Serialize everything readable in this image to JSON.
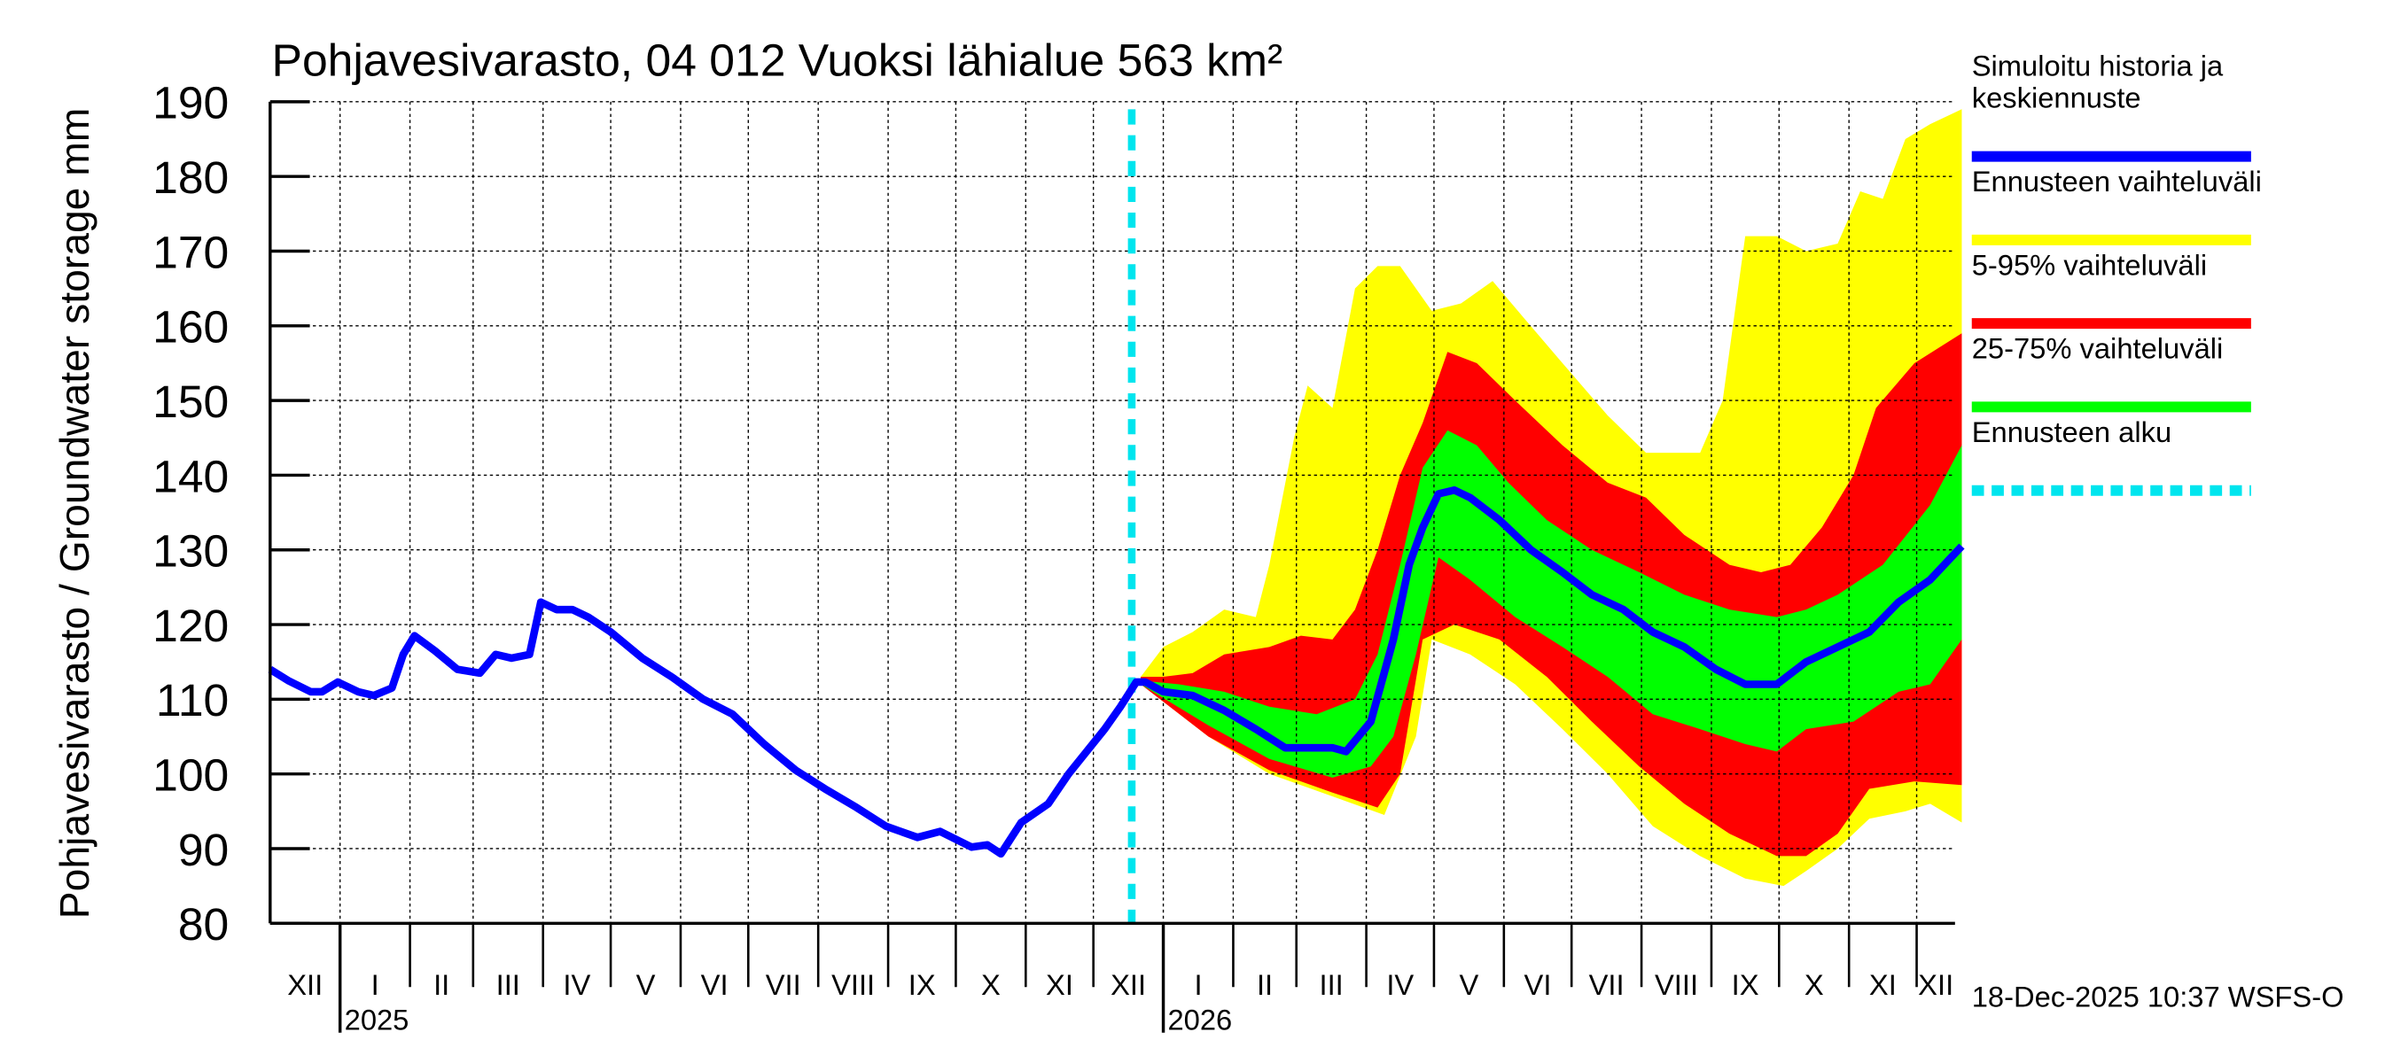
{
  "chart_data": {
    "type": "area",
    "title": "Pohjavesivarasto, 04 012 Vuoksi lähialue 563 km²",
    "ylabel": "Pohjavesivarasto / Groundwater storage   mm",
    "xlabel": "",
    "x_units": "days since 2024-12-01",
    "xlim": [
      0,
      747
    ],
    "ylim": [
      80,
      190
    ],
    "yticks": [
      80,
      90,
      100,
      110,
      120,
      130,
      140,
      150,
      160,
      170,
      180,
      190
    ],
    "grid": true,
    "months": [
      {
        "label": "XII",
        "start": 0
      },
      {
        "label": "I",
        "start": 31
      },
      {
        "label": "II",
        "start": 62
      },
      {
        "label": "III",
        "start": 90
      },
      {
        "label": "IV",
        "start": 121
      },
      {
        "label": "V",
        "start": 151
      },
      {
        "label": "VI",
        "start": 182
      },
      {
        "label": "VII",
        "start": 212
      },
      {
        "label": "VIII",
        "start": 243
      },
      {
        "label": "IX",
        "start": 274
      },
      {
        "label": "X",
        "start": 304
      },
      {
        "label": "XI",
        "start": 335
      },
      {
        "label": "XII",
        "start": 365
      },
      {
        "label": "I",
        "start": 396
      },
      {
        "label": "II",
        "start": 427
      },
      {
        "label": "III",
        "start": 455
      },
      {
        "label": "IV",
        "start": 486
      },
      {
        "label": "V",
        "start": 516
      },
      {
        "label": "VI",
        "start": 547
      },
      {
        "label": "VII",
        "start": 577
      },
      {
        "label": "VIII",
        "start": 608
      },
      {
        "label": "IX",
        "start": 639
      },
      {
        "label": "X",
        "start": 669
      },
      {
        "label": "XI",
        "start": 700
      },
      {
        "label": "XII",
        "start": 730
      }
    ],
    "month_end": 747,
    "years": [
      {
        "label": "2025",
        "start": 31
      },
      {
        "label": "2026",
        "start": 396
      }
    ],
    "forecast_start": 382,
    "legend_position": "right",
    "legend": [
      {
        "label": "Simuloitu historia ja keskiennuste",
        "lines": [
          "Simuloitu historia ja",
          "keskiennuste"
        ],
        "color": "#0000ff",
        "style": "line"
      },
      {
        "label": "Ennusteen vaihteluväli",
        "lines": [
          "Ennusteen vaihteluväli"
        ],
        "color": "#ffff00",
        "style": "line"
      },
      {
        "label": "5-95% vaihteluväli",
        "lines": [
          "5-95% vaihteluväli"
        ],
        "color": "#ff0000",
        "style": "line"
      },
      {
        "label": "25-75% vaihteluväli",
        "lines": [
          "25-75% vaihteluväli"
        ],
        "color": "#00ff00",
        "style": "line"
      },
      {
        "label": "Ennusteen alku",
        "lines": [
          "Ennusteen alku"
        ],
        "color": "#00e5ee",
        "style": "dashed"
      }
    ],
    "footer": "18-Dec-2025 10:37 WSFS-O",
    "series": [
      {
        "name": "Ennusteen vaihteluväli",
        "kind": "band",
        "color": "#ffff00",
        "upper": [
          [
            386,
            113
          ],
          [
            396,
            117
          ],
          [
            409,
            119
          ],
          [
            423,
            122
          ],
          [
            437,
            121
          ],
          [
            443,
            128
          ],
          [
            454,
            145
          ],
          [
            460,
            152
          ],
          [
            471,
            149
          ],
          [
            481,
            165
          ],
          [
            491,
            168
          ],
          [
            501,
            168
          ],
          [
            515,
            162
          ],
          [
            528,
            163
          ],
          [
            542,
            166
          ],
          [
            556,
            161
          ],
          [
            573,
            155
          ],
          [
            593,
            148
          ],
          [
            610,
            143
          ],
          [
            620,
            143
          ],
          [
            634,
            143
          ],
          [
            644,
            150
          ],
          [
            654,
            172
          ],
          [
            668,
            172
          ],
          [
            681,
            170
          ],
          [
            695,
            171
          ],
          [
            705,
            178
          ],
          [
            715,
            177
          ],
          [
            725,
            185
          ],
          [
            736,
            187
          ],
          [
            750,
            189
          ]
        ],
        "lower": [
          [
            386,
            112
          ],
          [
            416,
            105
          ],
          [
            443,
            100
          ],
          [
            471,
            97
          ],
          [
            494,
            94.5
          ],
          [
            508,
            105
          ],
          [
            515,
            118
          ],
          [
            532,
            116
          ],
          [
            552,
            112
          ],
          [
            573,
            106
          ],
          [
            593,
            100
          ],
          [
            613,
            93
          ],
          [
            634,
            89
          ],
          [
            654,
            86
          ],
          [
            671,
            85
          ],
          [
            681,
            87
          ],
          [
            695,
            90
          ],
          [
            709,
            94
          ],
          [
            725,
            95
          ],
          [
            736,
            96
          ],
          [
            750,
            93.5
          ]
        ]
      },
      {
        "name": "5-95% vaihteluväli",
        "kind": "band",
        "color": "#ff0000",
        "upper": [
          [
            386,
            113
          ],
          [
            396,
            113
          ],
          [
            409,
            113.5
          ],
          [
            423,
            116
          ],
          [
            443,
            117
          ],
          [
            457,
            118.5
          ],
          [
            471,
            118
          ],
          [
            481,
            122
          ],
          [
            491,
            130
          ],
          [
            501,
            140
          ],
          [
            511,
            147
          ],
          [
            522,
            156.5
          ],
          [
            535,
            155
          ],
          [
            552,
            150
          ],
          [
            573,
            144
          ],
          [
            593,
            139
          ],
          [
            610,
            137
          ],
          [
            627,
            132
          ],
          [
            647,
            128
          ],
          [
            661,
            127
          ],
          [
            674,
            128
          ],
          [
            688,
            133
          ],
          [
            702,
            140
          ],
          [
            712,
            149
          ],
          [
            729,
            155
          ],
          [
            750,
            159
          ]
        ],
        "lower": [
          [
            386,
            112
          ],
          [
            416,
            105
          ],
          [
            443,
            100.5
          ],
          [
            471,
            97.5
          ],
          [
            491,
            95.5
          ],
          [
            501,
            100
          ],
          [
            511,
            118
          ],
          [
            525,
            120
          ],
          [
            545,
            118
          ],
          [
            566,
            113
          ],
          [
            586,
            107
          ],
          [
            607,
            101
          ],
          [
            627,
            96
          ],
          [
            647,
            92
          ],
          [
            668,
            89
          ],
          [
            681,
            89
          ],
          [
            695,
            92
          ],
          [
            709,
            98
          ],
          [
            729,
            99
          ],
          [
            750,
            98.5
          ]
        ]
      },
      {
        "name": "25-75% vaihteluväli",
        "kind": "band",
        "color": "#00ff00",
        "upper": [
          [
            386,
            112.5
          ],
          [
            403,
            112
          ],
          [
            423,
            111
          ],
          [
            443,
            109
          ],
          [
            464,
            108
          ],
          [
            481,
            110
          ],
          [
            491,
            116
          ],
          [
            501,
            128
          ],
          [
            511,
            141
          ],
          [
            522,
            146
          ],
          [
            535,
            144
          ],
          [
            549,
            139
          ],
          [
            566,
            134
          ],
          [
            586,
            130
          ],
          [
            607,
            127
          ],
          [
            627,
            124
          ],
          [
            647,
            122
          ],
          [
            668,
            121
          ],
          [
            681,
            122
          ],
          [
            695,
            124
          ],
          [
            715,
            128
          ],
          [
            736,
            136
          ],
          [
            750,
            144
          ]
        ],
        "lower": [
          [
            386,
            112
          ],
          [
            416,
            106.5
          ],
          [
            443,
            102
          ],
          [
            471,
            99.5
          ],
          [
            488,
            101
          ],
          [
            498,
            105
          ],
          [
            508,
            116
          ],
          [
            518,
            129
          ],
          [
            532,
            126
          ],
          [
            552,
            121
          ],
          [
            573,
            117
          ],
          [
            593,
            113
          ],
          [
            613,
            108
          ],
          [
            634,
            106
          ],
          [
            654,
            104
          ],
          [
            668,
            103
          ],
          [
            681,
            106
          ],
          [
            702,
            107
          ],
          [
            722,
            111
          ],
          [
            736,
            112
          ],
          [
            750,
            118
          ]
        ]
      },
      {
        "name": "Simuloitu historia ja keskiennuste",
        "kind": "line",
        "color": "#0000ff",
        "points": [
          [
            0,
            114
          ],
          [
            8,
            112.5
          ],
          [
            18,
            111
          ],
          [
            23,
            111
          ],
          [
            30,
            112.3
          ],
          [
            39,
            111
          ],
          [
            46,
            110.5
          ],
          [
            54,
            111.5
          ],
          [
            59,
            116
          ],
          [
            64,
            118.5
          ],
          [
            73,
            116.5
          ],
          [
            83,
            114
          ],
          [
            93,
            113.5
          ],
          [
            100,
            116
          ],
          [
            107,
            115.5
          ],
          [
            115,
            116
          ],
          [
            120,
            123
          ],
          [
            127,
            122
          ],
          [
            134,
            122
          ],
          [
            141,
            121
          ],
          [
            151,
            119
          ],
          [
            165,
            115.5
          ],
          [
            178,
            113
          ],
          [
            192,
            110
          ],
          [
            205,
            108
          ],
          [
            219,
            104
          ],
          [
            233,
            100.5
          ],
          [
            246,
            98
          ],
          [
            260,
            95.5
          ],
          [
            273,
            93
          ],
          [
            287,
            91.5
          ],
          [
            297,
            92.3
          ],
          [
            311,
            90.2
          ],
          [
            318,
            90.5
          ],
          [
            324,
            89.3
          ],
          [
            333,
            93.5
          ],
          [
            345,
            96
          ],
          [
            354,
            100
          ],
          [
            362,
            103
          ],
          [
            370,
            106
          ],
          [
            377,
            109
          ],
          [
            384,
            112.3
          ],
          [
            388,
            112.3
          ],
          [
            396,
            111
          ],
          [
            409,
            110.5
          ],
          [
            423,
            108.5
          ],
          [
            437,
            106
          ],
          [
            450,
            103.5
          ],
          [
            460,
            103.5
          ],
          [
            471,
            103.5
          ],
          [
            477,
            103
          ],
          [
            488,
            107
          ],
          [
            498,
            118
          ],
          [
            505,
            128
          ],
          [
            511,
            133
          ],
          [
            518,
            137.5
          ],
          [
            525,
            138
          ],
          [
            532,
            137
          ],
          [
            545,
            134
          ],
          [
            559,
            130
          ],
          [
            573,
            127
          ],
          [
            586,
            124
          ],
          [
            600,
            122
          ],
          [
            613,
            119
          ],
          [
            627,
            117
          ],
          [
            641,
            114
          ],
          [
            654,
            112
          ],
          [
            668,
            112
          ],
          [
            681,
            115
          ],
          [
            695,
            117
          ],
          [
            709,
            119
          ],
          [
            722,
            123
          ],
          [
            736,
            126
          ],
          [
            750,
            130.5
          ]
        ]
      }
    ]
  }
}
